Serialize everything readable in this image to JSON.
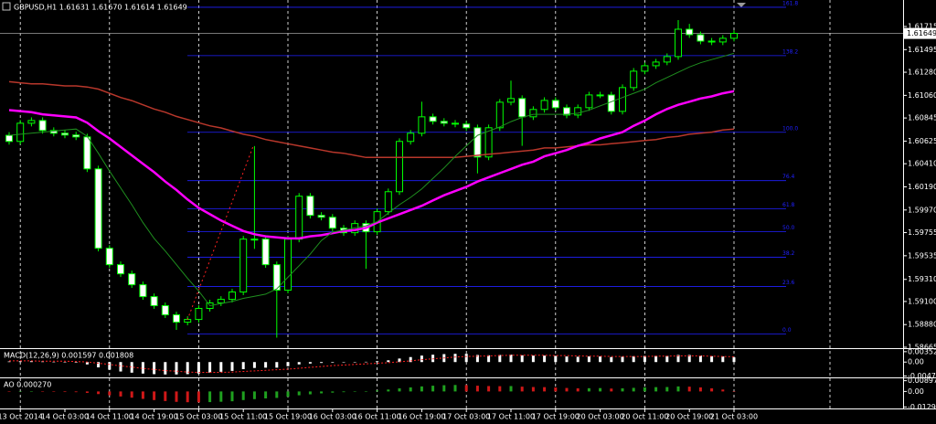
{
  "chart_data": [
    {
      "type": "candlestick",
      "title": "GBPUSD,H1  1.61631 1.61670 1.61614 1.61649",
      "categories": [
        null,
        "13 Oct 2014",
        null,
        null,
        null,
        "14 Oct 03:00",
        null,
        null,
        null,
        "14 Oct 11:00",
        null,
        null,
        null,
        "14 Oct 19:00",
        null,
        null,
        null,
        "15 Oct 03:00",
        null,
        null,
        null,
        "15 Oct 11:00",
        null,
        null,
        null,
        "15 Oct 19:00",
        null,
        null,
        null,
        "16 Oct 03:00",
        null,
        null,
        null,
        "16 Oct 11:00",
        null,
        null,
        null,
        "16 Oct 19:00",
        null,
        null,
        null,
        "17 Oct 03:00",
        null,
        null,
        null,
        "17 Oct 11:00",
        null,
        null,
        null,
        "17 Oct 19:00",
        null,
        null,
        null,
        "20 Oct 03:00",
        null,
        null,
        null,
        "20 Oct 11:00",
        null,
        null,
        null,
        "20 Oct 19:00",
        null,
        null,
        null,
        "21 Oct 03:00"
      ],
      "open": [
        1.6068,
        1.60622,
        1.60795,
        1.60821,
        1.60726,
        1.607,
        1.60683,
        1.60665,
        1.60361,
        1.59606,
        1.5945,
        1.59363,
        1.59259,
        1.59146,
        1.5906,
        1.58973,
        1.58903,
        1.58929,
        1.59034,
        1.59086,
        1.5912,
        1.5919,
        1.59693,
        1.59693,
        1.5945,
        1.59207,
        1.59693,
        1.60101,
        1.59919,
        1.59901,
        1.59797,
        1.59754,
        1.59841,
        1.59763,
        1.59954,
        1.60144,
        1.60622,
        1.607,
        1.60856,
        1.60813,
        1.60795,
        1.60787,
        1.60752,
        1.60474,
        1.60752,
        1.60995,
        1.6103,
        1.60856,
        1.60926,
        1.61012,
        1.60943,
        1.60873,
        1.60943,
        1.61064,
        1.61064,
        1.60908,
        1.61134,
        1.6129,
        1.61342,
        1.61377,
        1.61429,
        1.61689,
        1.61637,
        1.61576,
        1.61568,
        1.61603
      ],
      "high": [
        1.6071,
        1.60825,
        1.60851,
        1.60851,
        1.60756,
        1.6073,
        1.60713,
        1.60695,
        1.60391,
        1.59636,
        1.5948,
        1.59393,
        1.59289,
        1.59176,
        1.5909,
        1.59003,
        1.58959,
        1.59064,
        1.59116,
        1.5915,
        1.5922,
        1.59723,
        1.60578,
        1.59723,
        1.5948,
        1.59723,
        1.60131,
        1.60131,
        1.59949,
        1.59931,
        1.59827,
        1.59871,
        1.59871,
        1.59984,
        1.60174,
        1.60652,
        1.6073,
        1.61,
        1.60886,
        1.60843,
        1.60825,
        1.60817,
        1.60782,
        1.60782,
        1.61025,
        1.612,
        1.6106,
        1.60956,
        1.61042,
        1.61042,
        1.60973,
        1.60973,
        1.61094,
        1.61094,
        1.61094,
        1.61164,
        1.6132,
        1.61372,
        1.61407,
        1.61459,
        1.61776,
        1.6174,
        1.61667,
        1.61606,
        1.61633,
        1.61679
      ],
      "low": [
        1.60592,
        1.60592,
        1.60765,
        1.60696,
        1.6067,
        1.60653,
        1.60635,
        1.60331,
        1.59576,
        1.5942,
        1.59333,
        1.59229,
        1.59116,
        1.5903,
        1.58943,
        1.5883,
        1.58873,
        1.58899,
        1.59004,
        1.59056,
        1.5909,
        1.5916,
        1.596,
        1.5942,
        1.58756,
        1.59177,
        1.59663,
        1.59889,
        1.59871,
        1.59767,
        1.59724,
        1.59724,
        1.5941,
        1.59733,
        1.59924,
        1.60114,
        1.60592,
        1.6067,
        1.60783,
        1.60765,
        1.60757,
        1.60722,
        1.60318,
        1.60444,
        1.60722,
        1.60965,
        1.6058,
        1.60826,
        1.60896,
        1.60913,
        1.60843,
        1.60843,
        1.60913,
        1.61034,
        1.60878,
        1.60878,
        1.61104,
        1.6126,
        1.61312,
        1.61347,
        1.61399,
        1.61607,
        1.61546,
        1.61538,
        1.61538,
        1.61573
      ],
      "close": [
        1.60622,
        1.60795,
        1.60821,
        1.60726,
        1.607,
        1.60683,
        1.60665,
        1.60361,
        1.59606,
        1.5945,
        1.59363,
        1.59259,
        1.59146,
        1.5906,
        1.58973,
        1.58903,
        1.58929,
        1.59034,
        1.59086,
        1.5912,
        1.5919,
        1.59693,
        1.59693,
        1.5945,
        1.59207,
        1.59693,
        1.60101,
        1.59919,
        1.59901,
        1.59797,
        1.59754,
        1.59841,
        1.59763,
        1.59954,
        1.60144,
        1.60622,
        1.607,
        1.60856,
        1.60813,
        1.60795,
        1.60787,
        1.60752,
        1.60474,
        1.60752,
        1.60995,
        1.6103,
        1.60856,
        1.60926,
        1.61012,
        1.60943,
        1.60873,
        1.60943,
        1.61064,
        1.61064,
        1.60908,
        1.61134,
        1.6129,
        1.61342,
        1.61377,
        1.61429,
        1.61689,
        1.61637,
        1.61576,
        1.61568,
        1.61603,
        1.61649
      ],
      "up_color": "#000000",
      "down_color": "#ffffff",
      "wick_color": "#00ff00",
      "series": [
        {
          "color": "#b8372b",
          "line_width": 1.5,
          "values": [
            1.6119,
            1.6118,
            1.6117,
            1.6117,
            1.6116,
            1.6115,
            1.6115,
            1.6114,
            1.6112,
            1.6108,
            1.6104,
            1.6101,
            1.6097,
            1.6093,
            1.609,
            1.6086,
            1.6083,
            1.608,
            1.6077,
            1.6075,
            1.6072,
            1.6069,
            1.6067,
            1.6064,
            1.6062,
            1.606,
            1.6058,
            1.6056,
            1.6054,
            1.6052,
            1.6051,
            1.6049,
            1.6047,
            1.6047,
            1.6047,
            1.6047,
            1.6047,
            1.6047,
            1.6047,
            1.6047,
            1.6047,
            1.6048,
            1.6049,
            1.605,
            1.6051,
            1.6052,
            1.6053,
            1.6054,
            1.6056,
            1.6056,
            1.6057,
            1.6058,
            1.6059,
            1.6059,
            1.606,
            1.6061,
            1.6062,
            1.6063,
            1.6064,
            1.6066,
            1.6067,
            1.6069,
            1.607,
            1.6071,
            1.6073,
            1.6074
          ]
        },
        {
          "color": "#ff00ff",
          "line_width": 2.5,
          "values": [
            1.6092,
            1.6091,
            1.609,
            1.6088,
            1.6087,
            1.6086,
            1.6085,
            1.608,
            1.6072,
            1.6065,
            1.6057,
            1.6049,
            1.6041,
            1.6033,
            1.6024,
            1.6016,
            1.6007,
            1.5999,
            1.5993,
            1.5987,
            1.5982,
            1.5977,
            1.5974,
            1.5972,
            1.5971,
            1.597,
            1.597,
            1.5972,
            1.5973,
            1.5975,
            1.5977,
            1.5978,
            1.598,
            1.5985,
            1.5989,
            1.5993,
            1.5997,
            1.6001,
            1.6006,
            1.6011,
            1.6015,
            1.6019,
            1.6024,
            1.6028,
            1.6032,
            1.6036,
            1.604,
            1.6043,
            1.6048,
            1.6051,
            1.6054,
            1.6058,
            1.6061,
            1.6065,
            1.6068,
            1.6071,
            1.6077,
            1.6082,
            1.6088,
            1.6093,
            1.6097,
            1.61,
            1.6103,
            1.6105,
            1.6108,
            1.611
          ]
        },
        {
          "color": "#1f8f1f",
          "line_width": 1,
          "values": [
            1.6068,
            1.6069,
            1.607,
            1.6071,
            1.6072,
            1.6073,
            1.6074,
            1.6067,
            1.6051,
            1.6034,
            1.6018,
            1.6002,
            1.5985,
            1.597,
            1.5958,
            1.5945,
            1.5932,
            1.592,
            1.5906,
            1.5908,
            1.591,
            1.5913,
            1.5915,
            1.5917,
            1.5922,
            1.5933,
            1.5944,
            1.5955,
            1.5968,
            1.5976,
            1.5978,
            1.598,
            1.5982,
            1.5986,
            1.5994,
            1.6002,
            1.6009,
            1.6017,
            1.6027,
            1.6037,
            1.6048,
            1.6058,
            1.6068,
            1.6072,
            1.6076,
            1.6081,
            1.6085,
            1.6088,
            1.6088,
            1.6088,
            1.6088,
            1.6089,
            1.6092,
            1.6096,
            1.61,
            1.6104,
            1.6108,
            1.6112,
            1.6118,
            1.6123,
            1.6128,
            1.6133,
            1.6137,
            1.614,
            1.6143,
            1.6146
          ]
        }
      ],
      "fib": {
        "color": "#2020ff",
        "levels": [
          "161.8",
          "138.2",
          "100.0",
          "76.4",
          "61.8",
          "50.0",
          "38.2",
          "23.6",
          "0.0"
        ],
        "prices": [
          1.61898,
          1.61438,
          1.60709,
          1.60249,
          1.5998,
          1.59763,
          1.5952,
          1.59242,
          1.58791
        ]
      },
      "last_price": 1.61649,
      "last_price_color": "#a0a0a0",
      "ylim": [
        1.58656,
        1.61967
      ],
      "yticks": [
        1.61715,
        1.61495,
        {
          "value": 1.6128,
          "label": "1.61280"
        },
        {
          "value": 1.6106,
          "label": "1.61060"
        },
        1.60845,
        1.60625,
        {
          "value": 1.6041,
          "label": "1.60410"
        },
        {
          "value": 1.6019,
          "label": "1.60190"
        },
        {
          "value": 1.5997,
          "label": "1.59970"
        },
        1.59755,
        1.59535,
        {
          "value": 1.5931,
          "label": "1.59310"
        },
        {
          "value": 1.591,
          "label": "1.59100"
        },
        {
          "value": 1.5888,
          "label": "1.58880"
        },
        1.58665
      ],
      "grid": true
    },
    {
      "type": "macd",
      "title": "MACD(12,26,9) 0.001597 0.001808",
      "series": [
        {
          "type": "bar",
          "color": "#ffffff",
          "values": [
            0.0002,
            0.0003,
            0.0003,
            0.0002,
            0.0001,
            0.0,
            -0.0002,
            -0.0008,
            -0.0018,
            -0.0026,
            -0.0032,
            -0.0036,
            -0.0039,
            -0.0041,
            -0.0042,
            -0.0042,
            -0.0041,
            -0.0039,
            -0.0036,
            -0.0033,
            -0.003,
            -0.0024,
            -0.002,
            -0.0019,
            -0.0019,
            -0.0014,
            -0.0008,
            -0.0005,
            -0.0003,
            -0.0002,
            -0.0001,
            0.0,
            0.0001,
            0.0003,
            0.0006,
            0.0012,
            0.0017,
            0.0022,
            0.0025,
            0.0027,
            0.0028,
            0.0028,
            0.0024,
            0.0023,
            0.0024,
            0.0025,
            0.0023,
            0.0022,
            0.0022,
            0.0021,
            0.0019,
            0.0018,
            0.0019,
            0.0019,
            0.0017,
            0.0018,
            0.002,
            0.0021,
            0.0021,
            0.0021,
            0.0024,
            0.0024,
            0.0022,
            0.002,
            0.0019,
            0.001597
          ]
        },
        {
          "type": "line",
          "color": "#ff2020",
          "values": [
            0.0004,
            0.0004,
            0.0004,
            0.0003,
            0.0003,
            0.0003,
            0.0002,
            0.0,
            -0.0004,
            -0.0008,
            -0.0013,
            -0.0017,
            -0.0022,
            -0.0025,
            -0.0029,
            -0.0031,
            -0.0034,
            -0.0035,
            -0.0035,
            -0.0035,
            -0.0034,
            -0.0032,
            -0.003,
            -0.0028,
            -0.0026,
            -0.0024,
            -0.0021,
            -0.0018,
            -0.0015,
            -0.0012,
            -0.001,
            -0.0008,
            -0.0006,
            -0.0004,
            -0.0002,
            0.0001,
            0.0004,
            0.0008,
            0.0011,
            0.0014,
            0.0017,
            0.0019,
            0.002,
            0.0021,
            0.0022,
            0.0023,
            0.0023,
            0.0023,
            0.0023,
            0.0022,
            0.0022,
            0.0021,
            0.002,
            0.002,
            0.0019,
            0.0019,
            0.0019,
            0.0019,
            0.002,
            0.002,
            0.0021,
            0.0021,
            0.0021,
            0.002,
            0.0019,
            0.001808
          ]
        }
      ],
      "ylim": [
        -0.0052,
        0.0041
      ],
      "yticks": [
        0.003524,
        {
          "value": 0,
          "label": "0.00"
        },
        -0.004712
      ]
    },
    {
      "type": "ao",
      "title": "AO 0.000270",
      "up_color": "#1fa01f",
      "down_color": "#d01818",
      "values": [
        -0.0004,
        -0.0003,
        -0.0002,
        -0.0003,
        -0.0004,
        -0.0005,
        -0.0006,
        -0.0012,
        -0.0022,
        -0.0032,
        -0.0042,
        -0.0052,
        -0.0062,
        -0.0072,
        -0.008,
        -0.0087,
        -0.009,
        -0.0091,
        -0.0089,
        -0.0086,
        -0.0082,
        -0.0072,
        -0.0064,
        -0.0058,
        -0.0054,
        -0.0044,
        -0.0032,
        -0.0024,
        -0.0016,
        -0.001,
        -0.0006,
        -0.0002,
        0.0002,
        0.0008,
        0.0016,
        0.0026,
        0.0034,
        0.0042,
        0.0048,
        0.0052,
        0.0054,
        0.0053,
        0.0048,
        0.0045,
        0.0044,
        0.0045,
        0.004,
        0.0037,
        0.0036,
        0.0033,
        0.0029,
        0.0026,
        0.0027,
        0.0028,
        0.0024,
        0.0026,
        0.003,
        0.0034,
        0.0036,
        0.0037,
        0.0042,
        0.004,
        0.0034,
        0.0026,
        0.0016,
        0.00027
      ],
      "ylim": [
        -0.0142,
        0.0102
      ],
      "yticks": [
        0.008974,
        {
          "value": 0,
          "label": "0.00"
        },
        {
          "value": -0.01295,
          "label": "-0.012950"
        }
      ]
    }
  ]
}
